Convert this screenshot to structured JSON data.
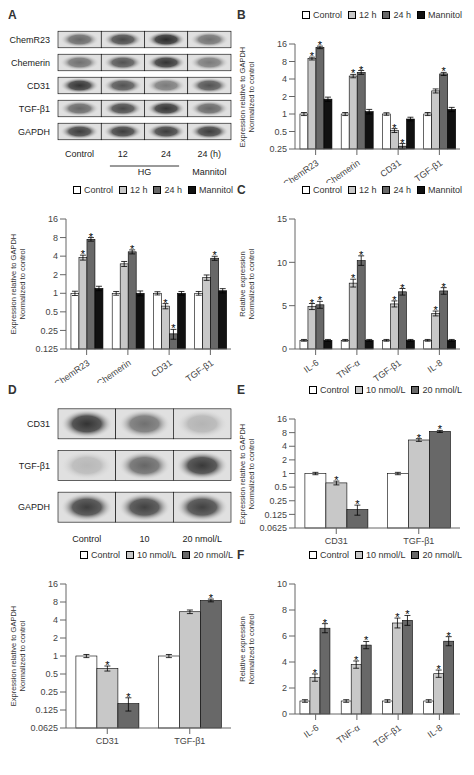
{
  "chart_data": [
    {
      "type": "heatmap",
      "title": "A",
      "x": [
        "Control",
        "12",
        "24",
        "24 (h)"
      ],
      "y": [
        "ChemR23",
        "Chemerin",
        "CD31",
        "TGF-β1",
        "GAPDH"
      ],
      "cells": [
        [
          0.6,
          0.75,
          0.9,
          0.55
        ],
        [
          0.55,
          0.7,
          0.85,
          0.5
        ],
        [
          0.85,
          0.7,
          0.5,
          0.7
        ],
        [
          0.6,
          0.75,
          0.85,
          0.6
        ],
        [
          0.8,
          0.8,
          0.8,
          0.8
        ]
      ],
      "annotations": [
        {
          "text": "HG",
          "x": [
            "12",
            "24"
          ]
        },
        {
          "text": "Mannitol",
          "x": [
            "24 (h)"
          ]
        }
      ]
    },
    {
      "type": "bar",
      "ylabel": "Expression relative to GAPDH\nNormalized to control",
      "categories": [
        "ChemR23",
        "Chemerin",
        "CD31",
        "TGF-β1"
      ],
      "series": [
        {
          "name": "Control",
          "color": "#ffffff",
          "values": [
            1,
            1,
            1,
            1
          ],
          "errors": [
            0.08,
            0.07,
            0.06,
            0.07
          ]
        },
        {
          "name": "12 h",
          "color": "#c8c8c8",
          "values": [
            3.8,
            3.0,
            0.62,
            1.8
          ],
          "errors": [
            0.35,
            0.28,
            0.06,
            0.18
          ],
          "annotations": [
            "*",
            null,
            "*",
            null
          ]
        },
        {
          "name": "24 h",
          "color": "#686868",
          "values": [
            7.5,
            4.7,
            0.22,
            3.7
          ],
          "errors": [
            0.5,
            0.35,
            0.04,
            0.28
          ],
          "annotations": [
            "*",
            "*",
            "*",
            "*"
          ]
        },
        {
          "name": "Mannitol",
          "color": "#111111",
          "values": [
            1.2,
            1.0,
            1.0,
            1.1
          ],
          "errors": [
            0.1,
            0.09,
            0.07,
            0.09
          ]
        }
      ],
      "log": "y",
      "ylim": [
        0.125,
        16
      ],
      "yticks": [
        0.125,
        0.25,
        0.5,
        1,
        2,
        4,
        8,
        16
      ],
      "legend": "upper right",
      "grid": false
    },
    {
      "type": "bar",
      "title": "B",
      "ylabel": "Expression relative to GAPDH\nNormalized to control",
      "categories": [
        "ChemR23",
        "Chemerin",
        "CD31",
        "TGF-β1"
      ],
      "series": [
        {
          "name": "Control",
          "color": "#ffffff",
          "values": [
            1,
            1,
            1,
            1
          ],
          "errors": [
            0.06,
            0.06,
            0.05,
            0.06
          ]
        },
        {
          "name": "12 h",
          "color": "#c8c8c8",
          "values": [
            9.0,
            4.5,
            0.52,
            2.5
          ],
          "errors": [
            0.5,
            0.3,
            0.04,
            0.2
          ],
          "annotations": [
            "*",
            "*",
            "*",
            null
          ]
        },
        {
          "name": "24 h",
          "color": "#686868",
          "values": [
            14.0,
            5.2,
            0.28,
            4.9
          ],
          "errors": [
            0.7,
            0.4,
            0.03,
            0.3
          ],
          "annotations": [
            "*",
            "*",
            "*",
            "*"
          ]
        },
        {
          "name": "Mannitol",
          "color": "#111111",
          "values": [
            1.8,
            1.1,
            0.82,
            1.2
          ],
          "errors": [
            0.15,
            0.1,
            0.06,
            0.1
          ]
        }
      ],
      "log": "y",
      "ylim": [
        0.25,
        16
      ],
      "yticks": [
        0.25,
        0.5,
        1,
        2,
        4,
        8,
        16
      ],
      "legend": "upper right",
      "grid": false
    },
    {
      "type": "bar",
      "title": "C",
      "ylabel": "Relative expression\nNormalized to control",
      "categories": [
        "IL-6",
        "TNF-α",
        "TGF-β1",
        "IL-8"
      ],
      "series": [
        {
          "name": "Control",
          "color": "#ffffff",
          "values": [
            1,
            1,
            1,
            1
          ],
          "errors": [
            0.1,
            0.1,
            0.1,
            0.1
          ]
        },
        {
          "name": "12 h",
          "color": "#c8c8c8",
          "values": [
            4.9,
            7.6,
            5.2,
            4.1
          ],
          "errors": [
            0.35,
            0.45,
            0.35,
            0.28
          ],
          "annotations": [
            "*",
            "*",
            "*",
            "*"
          ]
        },
        {
          "name": "24 h",
          "color": "#686868",
          "values": [
            5.1,
            10.2,
            6.6,
            6.7
          ],
          "errors": [
            0.4,
            0.55,
            0.38,
            0.38
          ],
          "annotations": [
            "*",
            "*",
            "*",
            "*"
          ]
        },
        {
          "name": "Mannitol",
          "color": "#111111",
          "values": [
            1.0,
            1.0,
            1.0,
            1.0
          ],
          "errors": [
            0.1,
            0.1,
            0.1,
            0.1
          ]
        }
      ],
      "ylim": [
        0,
        15
      ],
      "yticks": [
        0,
        5,
        10,
        15
      ],
      "legend": "upper right",
      "grid": false
    },
    {
      "type": "heatmap",
      "title": "D",
      "x": [
        "Control",
        "10",
        "20 nmol/L"
      ],
      "y": [
        "CD31",
        "TGF-β1",
        "GAPDH"
      ],
      "cells": [
        [
          0.85,
          0.55,
          0.22
        ],
        [
          0.2,
          0.6,
          0.82
        ],
        [
          0.8,
          0.78,
          0.78
        ]
      ]
    },
    {
      "type": "bar",
      "ylabel": "Expression relative to GAPDH\nNormalized to control",
      "categories": [
        "CD31",
        "TGF-β1"
      ],
      "series": [
        {
          "name": "Control",
          "color": "#ffffff",
          "values": [
            1,
            1
          ],
          "errors": [
            0.06,
            0.06
          ]
        },
        {
          "name": "10 nmol/L",
          "color": "#c8c8c8",
          "values": [
            0.62,
            5.5
          ],
          "errors": [
            0.06,
            0.38
          ],
          "annotations": [
            "*",
            null
          ]
        },
        {
          "name": "20 nmol/L",
          "color": "#686868",
          "values": [
            0.16,
            8.5
          ],
          "errors": [
            0.04,
            0.45
          ],
          "annotations": [
            "*",
            "*"
          ]
        }
      ],
      "log": "y",
      "ylim": [
        0.0625,
        16
      ],
      "yticks": [
        0.0625,
        0.125,
        0.25,
        0.5,
        1,
        2,
        4,
        8,
        16
      ],
      "legend": "upper right",
      "grid": false
    },
    {
      "type": "bar",
      "title": "E",
      "ylabel": "Expression relative to GAPDH\nNormalized to control",
      "categories": [
        "CD31",
        "TGF-β1"
      ],
      "series": [
        {
          "name": "Control",
          "color": "#ffffff",
          "values": [
            1,
            1
          ],
          "errors": [
            0.06,
            0.06
          ]
        },
        {
          "name": "10 nmol/L",
          "color": "#c8c8c8",
          "values": [
            0.62,
            5.5
          ],
          "errors": [
            0.06,
            0.38
          ],
          "annotations": [
            "*",
            "*"
          ]
        },
        {
          "name": "20 nmol/L",
          "color": "#686868",
          "values": [
            0.16,
            8.5
          ],
          "errors": [
            0.04,
            0.45
          ],
          "annotations": [
            "*",
            "*"
          ]
        }
      ],
      "log": "y",
      "ylim": [
        0.0625,
        16
      ],
      "yticks": [
        0.0625,
        0.125,
        0.25,
        0.5,
        1,
        2,
        4,
        8,
        16
      ],
      "legend": "upper right",
      "grid": false
    },
    {
      "type": "bar",
      "title": "F",
      "ylabel": "Relative expression\nNormalized to control",
      "categories": [
        "IL-6",
        "TNF-α",
        "TGF-β1",
        "IL-8"
      ],
      "series": [
        {
          "name": "Control",
          "color": "#ffffff",
          "values": [
            1,
            1,
            1,
            1
          ],
          "errors": [
            0.1,
            0.1,
            0.1,
            0.1
          ]
        },
        {
          "name": "10 nmol/L",
          "color": "#c8c8c8",
          "values": [
            2.8,
            3.8,
            7.0,
            3.1
          ],
          "errors": [
            0.28,
            0.28,
            0.38,
            0.28
          ],
          "annotations": [
            "*",
            "*",
            "*",
            "*"
          ]
        },
        {
          "name": "20 nmol/L",
          "color": "#686868",
          "values": [
            6.6,
            5.3,
            7.2,
            5.6
          ],
          "errors": [
            0.35,
            0.28,
            0.38,
            0.35
          ],
          "annotations": [
            "*",
            "*",
            "*",
            "*"
          ]
        }
      ],
      "ylim": [
        0,
        10
      ],
      "yticks": [
        0,
        2,
        4,
        6,
        8,
        10
      ],
      "legend": "upper right",
      "grid": false
    }
  ]
}
